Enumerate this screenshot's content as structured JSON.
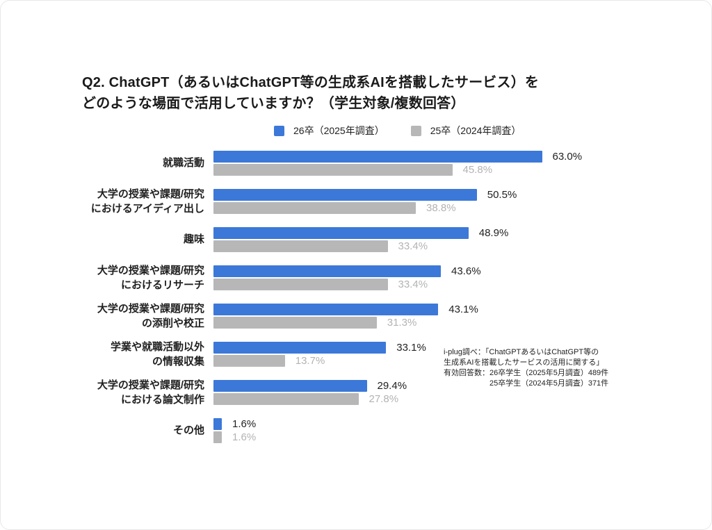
{
  "header": {
    "title": "Q2. ChatGPT（あるいはChatGPT等の生成系AIを搭載したサービス）を\nどのような場面で活用していますか？（学生対象/複数回答）"
  },
  "chart_data": {
    "type": "bar",
    "orientation": "horizontal",
    "title": "Q2. ChatGPT（あるいはChatGPT等の生成系AIを搭載したサービス）をどのような場面で活用していますか？（学生対象/複数回答）",
    "value_suffix": "%",
    "xlim": [
      0,
      70
    ],
    "grid": false,
    "legend_position": "top",
    "categories": [
      "就職活動",
      "大学の授業や課題/研究\nにおけるアイディア出し",
      "趣味",
      "大学の授業や課題/研究\nにおけるリサーチ",
      "大学の授業や課題/研究\nの添削や校正",
      "学業や就職活動以外\nの情報収集",
      "大学の授業や課題/研究\nにおける論文制作",
      "その他"
    ],
    "series": [
      {
        "name": "26卒（2025年調査）",
        "color": "#3c78d8",
        "value_label_color": "#212121",
        "values": [
          63.0,
          50.5,
          48.9,
          43.6,
          43.1,
          33.1,
          29.4,
          1.6
        ]
      },
      {
        "name": "25卒（2024年調査）",
        "color": "#b7b7b7",
        "value_label_color": "#b3b3b3",
        "values": [
          45.8,
          38.8,
          33.4,
          33.4,
          31.3,
          13.7,
          27.8,
          1.6
        ]
      }
    ]
  },
  "source": {
    "lines": [
      "i-plug調べ：「ChatGPTあるいはChatGPT等の",
      "生成系AIを搭載したサービスの活用に関する」",
      "有効回答数：26卒学生（2025年5月調査）489件",
      "25卒学生（2024年5月調査）371件"
    ]
  }
}
